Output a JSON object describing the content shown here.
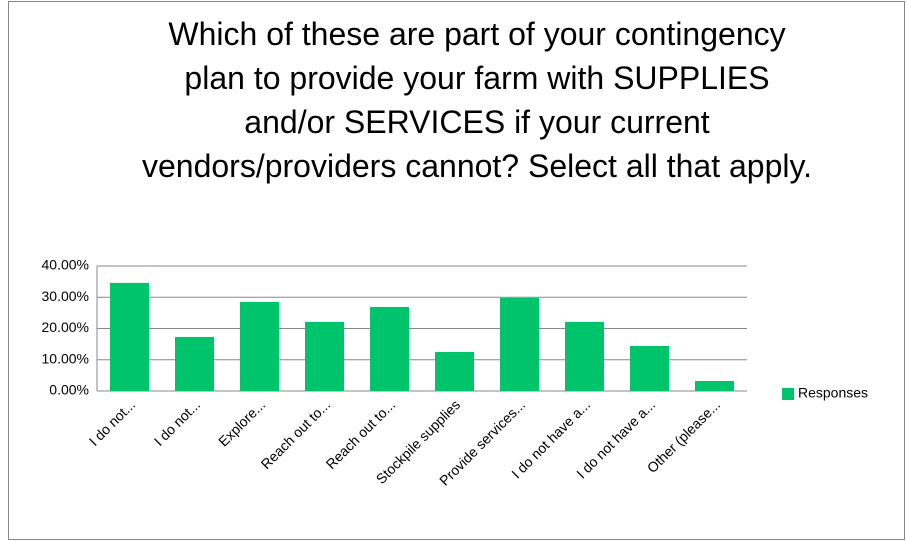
{
  "chart_data": {
    "type": "bar",
    "title": "Which of these are part of your contingency plan to provide your farm with SUPPLIES and/or SERVICES if your current vendors/providers cannot? Select all that apply.",
    "categories": [
      "I do not...",
      "I do not...",
      "Explore...",
      "Reach out to...",
      "Reach out to...",
      "Stockpile supplies",
      "Provide services...",
      "I do not have a...",
      "I do not have a...",
      "Other (please..."
    ],
    "series": [
      {
        "name": "Responses",
        "color": "#00c46c",
        "values": [
          34.6,
          17.3,
          28.5,
          22.1,
          26.9,
          12.5,
          29.8,
          22.1,
          14.4,
          3.2
        ]
      }
    ],
    "ylim": [
      0,
      40
    ],
    "yticks": [
      {
        "value": 0,
        "label": "0.00%"
      },
      {
        "value": 10,
        "label": "10.00%"
      },
      {
        "value": 20,
        "label": "20.00%"
      },
      {
        "value": 30,
        "label": "30.00%"
      },
      {
        "value": 40,
        "label": "40.00%"
      }
    ],
    "grid": true,
    "legend": "right"
  }
}
